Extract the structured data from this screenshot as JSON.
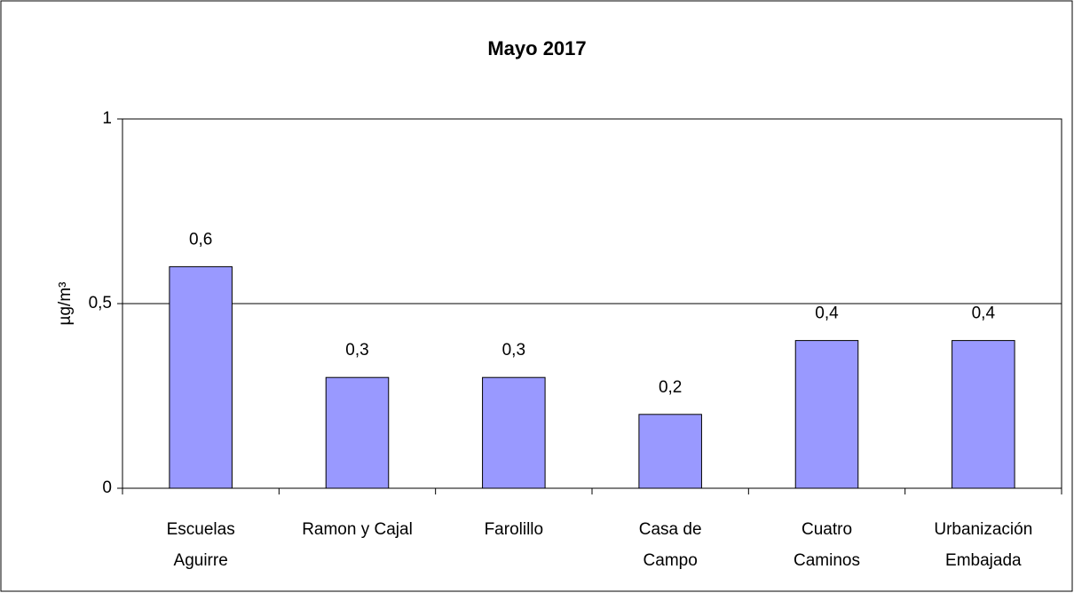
{
  "chart_data": {
    "type": "bar",
    "title": "Mayo 2017",
    "y_label": "µg/m³",
    "categories": [
      [
        "Escuelas",
        "Aguirre"
      ],
      [
        "Ramon y Cajal"
      ],
      [
        "Farolillo"
      ],
      [
        "Casa de",
        "Campo"
      ],
      [
        "Cuatro",
        "Caminos"
      ],
      [
        "Urbanización",
        "Embajada"
      ]
    ],
    "values": [
      0.6,
      0.3,
      0.3,
      0.2,
      0.4,
      0.4
    ],
    "value_labels": [
      "0,6",
      "0,3",
      "0,3",
      "0,2",
      "0,4",
      "0,4"
    ],
    "color": "#9999ff",
    "ylim": [
      0,
      1
    ],
    "yticks": [
      0,
      {
        "value": 0.5,
        "label": "0,5"
      },
      1
    ],
    "grid": true
  }
}
